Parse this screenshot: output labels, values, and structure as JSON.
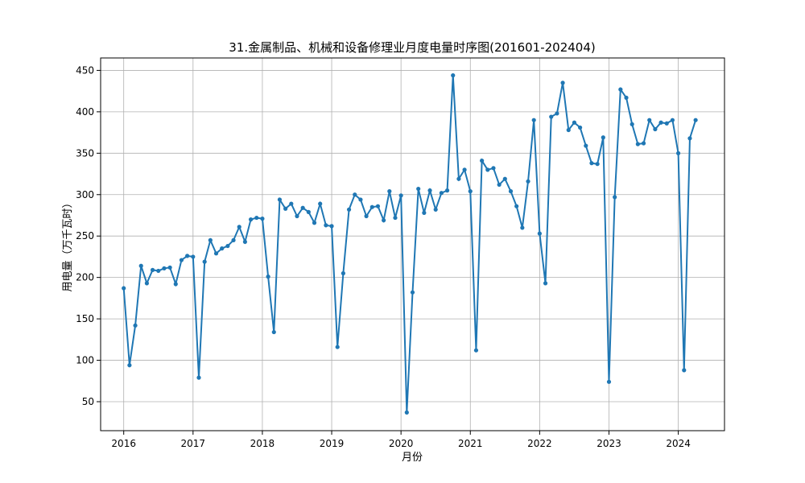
{
  "chart_data": {
    "type": "line",
    "title": "31.金属制品、机械和设备修理业月度电量时序图(201601-202404)",
    "xlabel": "月份",
    "ylabel": "用电量（万千瓦时）",
    "x_ticks": [
      "2016",
      "2017",
      "2018",
      "2019",
      "2020",
      "2021",
      "2022",
      "2023",
      "2024"
    ],
    "y_ticks": [
      50,
      100,
      150,
      200,
      250,
      300,
      350,
      400,
      450
    ],
    "xlim": [
      "2015-09",
      "2024-09"
    ],
    "ylim": [
      15,
      465
    ],
    "grid": true,
    "color": "#1f77b4",
    "series": [
      {
        "x": [
          "2016-01",
          "2016-02",
          "2016-03",
          "2016-04",
          "2016-05",
          "2016-06",
          "2016-07",
          "2016-08",
          "2016-09",
          "2016-10",
          "2016-11",
          "2016-12",
          "2017-01",
          "2017-02",
          "2017-03",
          "2017-04",
          "2017-05",
          "2017-06",
          "2017-07",
          "2017-08",
          "2017-09",
          "2017-10",
          "2017-11",
          "2017-12",
          "2018-01",
          "2018-02",
          "2018-03",
          "2018-04",
          "2018-05",
          "2018-06",
          "2018-07",
          "2018-08",
          "2018-09",
          "2018-10",
          "2018-11",
          "2018-12",
          "2019-01",
          "2019-02",
          "2019-03",
          "2019-04",
          "2019-05",
          "2019-06",
          "2019-07",
          "2019-08",
          "2019-09",
          "2019-10",
          "2019-11",
          "2019-12",
          "2020-01",
          "2020-02",
          "2020-03",
          "2020-04",
          "2020-05",
          "2020-06",
          "2020-07",
          "2020-08",
          "2020-09",
          "2020-10",
          "2020-11",
          "2020-12",
          "2021-01",
          "2021-02",
          "2021-03",
          "2021-04",
          "2021-05",
          "2021-06",
          "2021-07",
          "2021-08",
          "2021-09",
          "2021-10",
          "2021-11",
          "2021-12",
          "2022-01",
          "2022-02",
          "2022-03",
          "2022-04",
          "2022-05",
          "2022-06",
          "2022-07",
          "2022-08",
          "2022-09",
          "2022-10",
          "2022-11",
          "2022-12",
          "2023-01",
          "2023-02",
          "2023-03",
          "2023-04",
          "2023-05",
          "2023-06",
          "2023-07",
          "2023-08",
          "2023-09",
          "2023-10",
          "2023-11",
          "2023-12",
          "2024-01",
          "2024-02",
          "2024-03",
          "2024-04"
        ],
        "y": [
          187,
          94,
          142,
          214,
          193,
          209,
          208,
          211,
          212,
          192,
          221,
          226,
          225,
          79,
          219,
          245,
          229,
          235,
          238,
          245,
          261,
          243,
          270,
          272,
          271,
          201,
          134,
          294,
          283,
          289,
          274,
          284,
          279,
          266,
          289,
          263,
          262,
          116,
          205,
          282,
          300,
          294,
          274,
          285,
          286,
          269,
          304,
          272,
          299,
          37,
          182,
          307,
          278,
          305,
          282,
          302,
          305,
          444,
          319,
          330,
          304,
          112,
          341,
          330,
          332,
          312,
          319,
          304,
          286,
          260,
          316,
          390,
          253,
          193,
          394,
          398,
          435,
          378,
          387,
          381,
          359,
          338,
          337,
          369,
          74,
          297,
          427,
          417,
          385,
          361,
          362,
          390,
          379,
          387,
          386,
          390,
          350,
          88,
          368,
          390
        ]
      }
    ]
  }
}
